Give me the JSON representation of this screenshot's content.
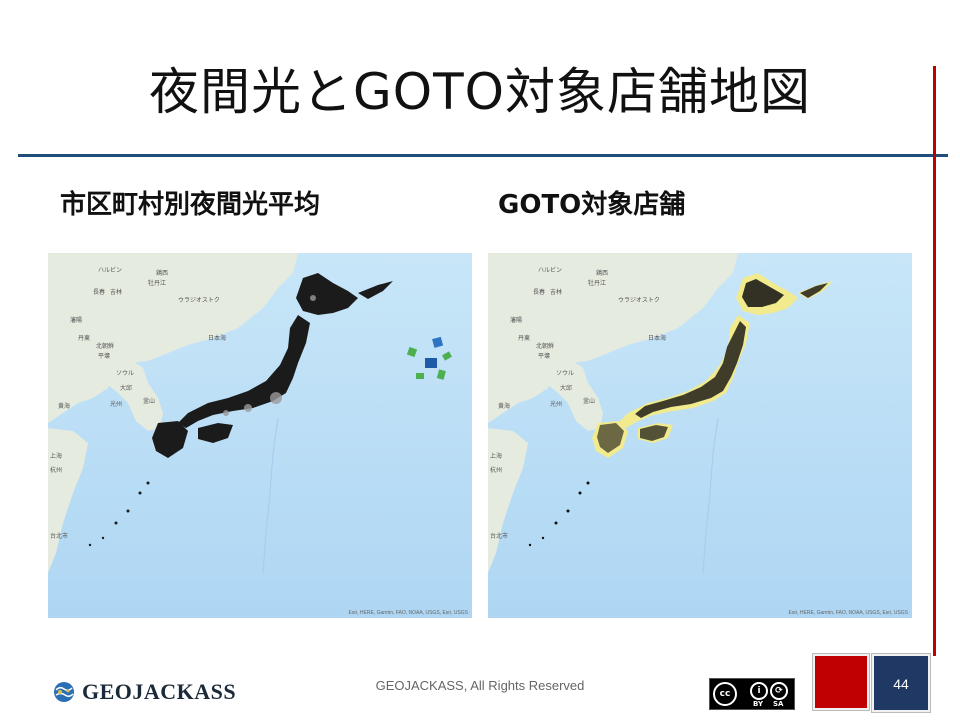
{
  "slide": {
    "title": "夜間光とGOTO対象店舗地図",
    "page_number": "44",
    "footer": "GEOJACKASS, All Rights Reserved"
  },
  "left_panel": {
    "heading": "市区町村別夜間光平均",
    "attribution": "Esri, HERE, Garmin, FAO, NOAA, USGS, Esri, USGS"
  },
  "right_panel": {
    "heading": "GOTO対象店舗",
    "attribution": "Esri, HERE, Garmin, FAO, NOAA, USGS, Esri, USGS"
  },
  "map_labels": {
    "harbin": "ハルビン",
    "vladivostok": "ウラジオストク",
    "changchun": "長春",
    "jilin": "吉林",
    "jixi": "鶏西",
    "mudanjiang": "牡丹江",
    "shenyang": "瀋陽",
    "dandong": "丹東",
    "north_korea": "北朝鮮",
    "pyongyang": "平壌",
    "seoul": "ソウル",
    "daegu": "大邱",
    "busan": "釜山",
    "gwangju": "光州",
    "yellow_sea": "黄海",
    "shanghai": "上海",
    "hangzhou": "杭州",
    "taipei": "台北市",
    "sea_of_japan": "日本海"
  },
  "logo": {
    "text": "GEOJACKASS",
    "icon": "globe-icon"
  },
  "license": {
    "cc": "cc",
    "by": "BY",
    "sa": "SA"
  },
  "colors": {
    "sea": "#b8dcf5",
    "land": "#e9ede4",
    "nightlight": "#1b1b1b",
    "stores": "#f2eb8e",
    "title_rule": "#1f4e79",
    "accent_red": "#c00000",
    "accent_navy": "#1f3864"
  }
}
